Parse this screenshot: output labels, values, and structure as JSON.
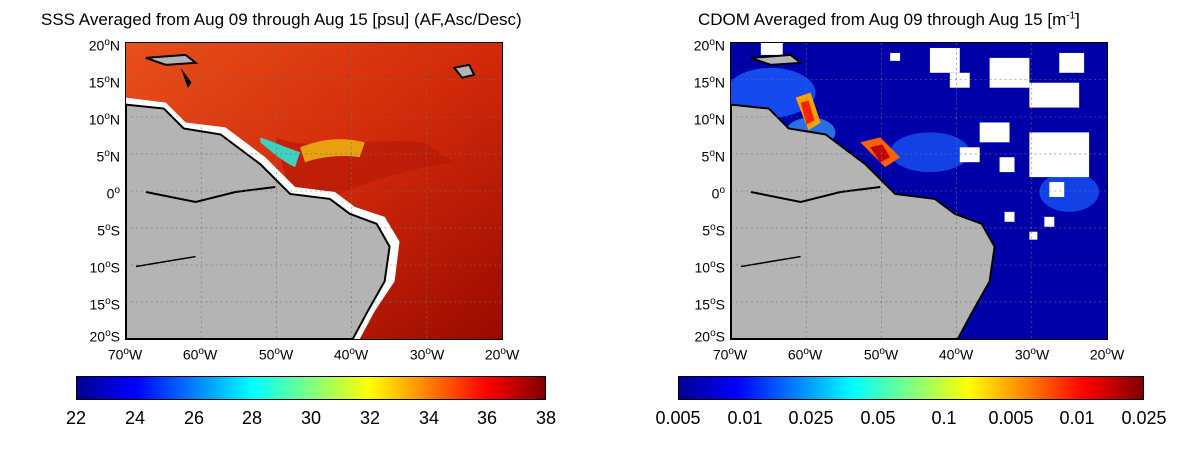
{
  "panels": [
    {
      "title": "SSS Averaged from Aug 09 through Aug 15 [psu] (AF,Asc/Desc)",
      "lat_labels": [
        {
          "deg": "20",
          "hemi": "N"
        },
        {
          "deg": "15",
          "hemi": "N"
        },
        {
          "deg": "10",
          "hemi": "N"
        },
        {
          "deg": "5",
          "hemi": "N"
        },
        {
          "deg": "0",
          "hemi": ""
        },
        {
          "deg": "5",
          "hemi": "S"
        },
        {
          "deg": "10",
          "hemi": "S"
        },
        {
          "deg": "15",
          "hemi": "S"
        },
        {
          "deg": "20",
          "hemi": "S"
        }
      ],
      "lon_labels": [
        {
          "deg": "70",
          "hemi": "W"
        },
        {
          "deg": "60",
          "hemi": "W"
        },
        {
          "deg": "50",
          "hemi": "W"
        },
        {
          "deg": "40",
          "hemi": "W"
        },
        {
          "deg": "30",
          "hemi": "W"
        },
        {
          "deg": "20",
          "hemi": "W"
        }
      ],
      "colorbar_labels": [
        "22",
        "24",
        "26",
        "28",
        "30",
        "32",
        "34",
        "36",
        "38"
      ]
    },
    {
      "title_main": "CDOM Averaged from Aug 09 through Aug 15 [m",
      "title_sup": "-1",
      "title_end": "]",
      "lat_labels": [
        {
          "deg": "20",
          "hemi": "N"
        },
        {
          "deg": "15",
          "hemi": "N"
        },
        {
          "deg": "10",
          "hemi": "N"
        },
        {
          "deg": "5",
          "hemi": "N"
        },
        {
          "deg": "0",
          "hemi": ""
        },
        {
          "deg": "5",
          "hemi": "S"
        },
        {
          "deg": "10",
          "hemi": "S"
        },
        {
          "deg": "15",
          "hemi": "S"
        },
        {
          "deg": "20",
          "hemi": "S"
        }
      ],
      "lon_labels": [
        {
          "deg": "70",
          "hemi": "W"
        },
        {
          "deg": "60",
          "hemi": "W"
        },
        {
          "deg": "50",
          "hemi": "W"
        },
        {
          "deg": "40",
          "hemi": "W"
        },
        {
          "deg": "30",
          "hemi": "W"
        },
        {
          "deg": "20",
          "hemi": "W"
        }
      ],
      "colorbar_labels": [
        "0.005",
        "0.01",
        "0.025",
        "0.05",
        "0.1",
        "0.005",
        "0.01",
        "0.025"
      ]
    }
  ],
  "map_extent": {
    "lon": [
      -70,
      -20
    ],
    "lat": [
      -20,
      20
    ]
  },
  "colors": {
    "land": "#b4b4b4",
    "coast": "#000000",
    "sss_ocean": "#d22a0a",
    "cdom_ocean": "#0000a8",
    "missing": "#ffffff"
  }
}
